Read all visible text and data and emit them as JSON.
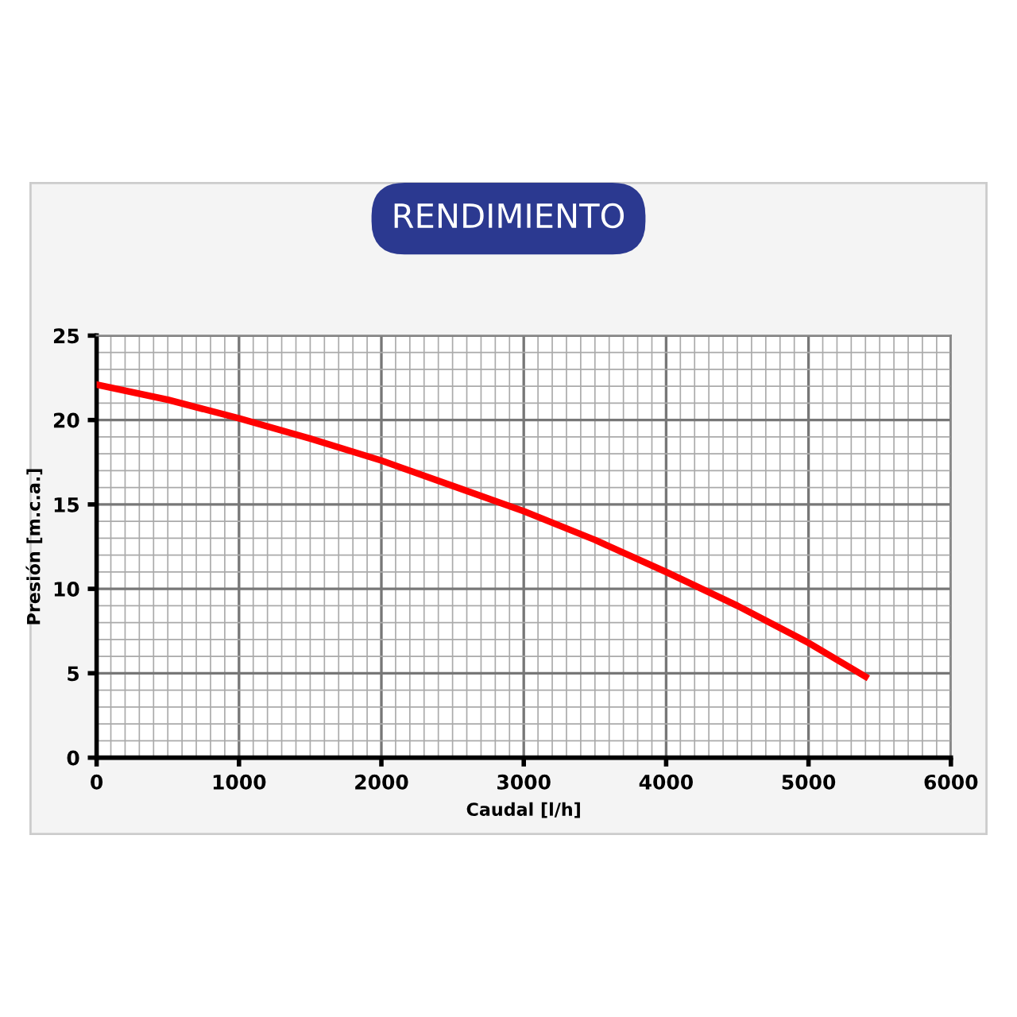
{
  "chart_data": {
    "type": "line",
    "title": "RENDIMIENTO",
    "xlabel": "Caudal [l/h]",
    "ylabel": "Presión [m.c.a.]",
    "x": [
      0,
      500,
      1000,
      1500,
      2000,
      2500,
      3000,
      3500,
      4000,
      4500,
      5000,
      5400
    ],
    "series": [
      {
        "color": "#ff0000",
        "values": [
          22.1,
          21.2,
          20.1,
          18.9,
          17.6,
          16.1,
          14.6,
          12.9,
          11.0,
          9.0,
          6.8,
          4.8
        ]
      }
    ],
    "xlim": [
      0,
      6000
    ],
    "xticks": [
      0,
      1000,
      2000,
      3000,
      4000,
      5000,
      6000
    ],
    "ylim": [
      0,
      25
    ],
    "yticks": [
      0,
      5,
      10,
      15,
      20,
      25
    ],
    "grid": true,
    "marker": "none",
    "line_style": "solid"
  }
}
